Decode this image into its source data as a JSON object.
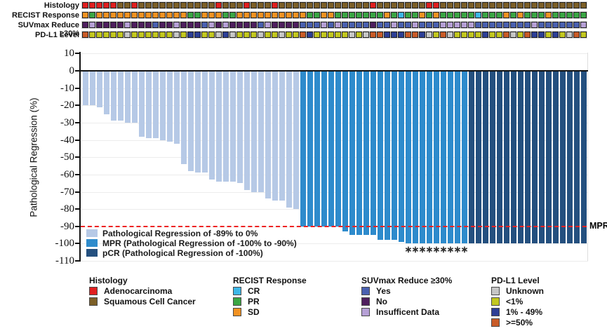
{
  "annotation_tracks": {
    "palette": {
      "histology": {
        "red": "#e01f1f",
        "brown": "#7c5f27"
      },
      "recist": {
        "orange": "#f29222",
        "green": "#3ba644",
        "cyan": "#3db7e8"
      },
      "suv": {
        "blue": "#4a60b0",
        "dkpurple": "#4f1f5e",
        "ltpurple": "#b6a0d6"
      },
      "pdl1": {
        "gray": "#c6c6c6",
        "yellow": "#c2c71f",
        "blue": "#2c3e95",
        "orange": "#c95b27"
      }
    },
    "rows": [
      {
        "label": "Histology",
        "palette_key": "histology",
        "cells": [
          "red",
          "red",
          "red",
          "red",
          "red",
          "brown",
          "brown",
          "red",
          "brown",
          "brown",
          "brown",
          "brown",
          "brown",
          "brown",
          "brown",
          "brown",
          "brown",
          "brown",
          "brown",
          "red",
          "brown",
          "brown",
          "brown",
          "red",
          "brown",
          "brown",
          "brown",
          "red",
          "brown",
          "brown",
          "brown",
          "brown",
          "brown",
          "brown",
          "brown",
          "brown",
          "brown",
          "brown",
          "brown",
          "brown",
          "brown",
          "red",
          "brown",
          "brown",
          "brown",
          "brown",
          "brown",
          "brown",
          "brown",
          "red",
          "red",
          "brown",
          "brown",
          "brown",
          "brown",
          "brown",
          "brown",
          "brown",
          "brown",
          "brown",
          "brown",
          "brown",
          "brown",
          "brown",
          "brown",
          "brown",
          "brown",
          "brown",
          "brown",
          "brown",
          "brown",
          "brown"
        ]
      },
      {
        "label": "RECIST Response",
        "palette_key": "recist",
        "cells": [
          "orange",
          "green",
          "orange",
          "orange",
          "orange",
          "orange",
          "orange",
          "orange",
          "orange",
          "orange",
          "orange",
          "orange",
          "orange",
          "orange",
          "orange",
          "green",
          "green",
          "orange",
          "orange",
          "orange",
          "green",
          "green",
          "orange",
          "orange",
          "orange",
          "orange",
          "orange",
          "orange",
          "orange",
          "orange",
          "orange",
          "orange",
          "green",
          "green",
          "orange",
          "orange",
          "green",
          "green",
          "green",
          "green",
          "green",
          "green",
          "green",
          "orange",
          "green",
          "cyan",
          "green",
          "green",
          "orange",
          "green",
          "orange",
          "green",
          "green",
          "green",
          "green",
          "green",
          "cyan",
          "green",
          "green",
          "green",
          "orange",
          "green",
          "orange",
          "green",
          "green",
          "green",
          "orange",
          "green",
          "green",
          "green",
          "green",
          "green"
        ]
      },
      {
        "label": "SUVmax Reduce ≥30%",
        "palette_key": "suv",
        "cells": [
          "dkpurple",
          "ltpurple",
          "dkpurple",
          "dkpurple",
          "dkpurple",
          "dkpurple",
          "ltpurple",
          "dkpurple",
          "dkpurple",
          "dkpurple",
          "blue",
          "dkpurple",
          "dkpurple",
          "ltpurple",
          "dkpurple",
          "dkpurple",
          "dkpurple",
          "blue",
          "ltpurple",
          "dkpurple",
          "ltpurple",
          "dkpurple",
          "dkpurple",
          "dkpurple",
          "dkpurple",
          "blue",
          "ltpurple",
          "dkpurple",
          "dkpurple",
          "dkpurple",
          "dkpurple",
          "blue",
          "blue",
          "blue",
          "ltpurple",
          "blue",
          "ltpurple",
          "blue",
          "blue",
          "blue",
          "blue",
          "dkpurple",
          "blue",
          "blue",
          "ltpurple",
          "blue",
          "blue",
          "ltpurple",
          "blue",
          "blue",
          "blue",
          "ltpurple",
          "ltpurple",
          "ltpurple",
          "ltpurple",
          "ltpurple",
          "blue",
          "blue",
          "blue",
          "blue",
          "blue",
          "blue",
          "blue",
          "blue",
          "ltpurple",
          "blue",
          "blue",
          "blue",
          "blue",
          "blue",
          "blue",
          "ltpurple"
        ]
      },
      {
        "label": "PD-L1 Level",
        "palette_key": "pdl1",
        "cells": [
          "orange",
          "yellow",
          "yellow",
          "yellow",
          "yellow",
          "yellow",
          "gray",
          "yellow",
          "yellow",
          "yellow",
          "yellow",
          "yellow",
          "yellow",
          "gray",
          "yellow",
          "blue",
          "blue",
          "yellow",
          "yellow",
          "gray",
          "blue",
          "gray",
          "yellow",
          "yellow",
          "yellow",
          "gray",
          "yellow",
          "yellow",
          "gray",
          "yellow",
          "yellow",
          "orange",
          "blue",
          "yellow",
          "yellow",
          "yellow",
          "yellow",
          "yellow",
          "gray",
          "yellow",
          "gray",
          "orange",
          "orange",
          "blue",
          "blue",
          "blue",
          "orange",
          "orange",
          "blue",
          "gray",
          "yellow",
          "orange",
          "gray",
          "yellow",
          "yellow",
          "yellow",
          "yellow",
          "blue",
          "yellow",
          "yellow",
          "orange",
          "gray",
          "yellow",
          "orange",
          "blue",
          "blue",
          "yellow",
          "blue",
          "yellow",
          "gray",
          "orange",
          "yellow"
        ]
      }
    ]
  },
  "chart_data": {
    "type": "bar",
    "title": "",
    "ylabel": "Pathological Regression (%)",
    "ylim": [
      -110,
      10
    ],
    "yticks": [
      10,
      0,
      -10,
      -20,
      -30,
      -40,
      -50,
      -60,
      -70,
      -80,
      -90,
      -100,
      -110
    ],
    "grid": true,
    "n_patients": 72,
    "values": [
      -20,
      -20,
      -21,
      -25,
      -29,
      -29,
      -30,
      -30,
      -38,
      -39,
      -39,
      -40,
      -41,
      -42,
      -54,
      -58,
      -59,
      -59,
      -63,
      -64,
      -64,
      -64,
      -65,
      -69,
      -70,
      -70,
      -74,
      -75,
      -75,
      -79,
      -80,
      -90,
      -90,
      -90,
      -90,
      -90,
      -90,
      -93,
      -95,
      -95,
      -95,
      -95,
      -98,
      -98,
      -98,
      -99,
      -100,
      -100,
      -100,
      -100,
      -100,
      -100,
      -100,
      -100,
      -100,
      -100,
      -100,
      -100,
      -100,
      -100,
      -100,
      -100,
      -100,
      -100,
      -100,
      -100,
      -100,
      -100,
      -100,
      -100,
      -100,
      -100
    ],
    "classes": [
      "reg",
      "reg",
      "reg",
      "reg",
      "reg",
      "reg",
      "reg",
      "reg",
      "reg",
      "reg",
      "reg",
      "reg",
      "reg",
      "reg",
      "reg",
      "reg",
      "reg",
      "reg",
      "reg",
      "reg",
      "reg",
      "reg",
      "reg",
      "reg",
      "reg",
      "reg",
      "reg",
      "reg",
      "reg",
      "reg",
      "reg",
      "mpr",
      "mpr",
      "mpr",
      "mpr",
      "mpr",
      "mpr",
      "mpr",
      "mpr",
      "mpr",
      "mpr",
      "mpr",
      "mpr",
      "mpr",
      "mpr",
      "mpr",
      "mpr",
      "mpr",
      "mpr",
      "mpr",
      "mpr",
      "mpr",
      "mpr",
      "mpr",
      "mpr",
      "pcr",
      "pcr",
      "pcr",
      "pcr",
      "pcr",
      "pcr",
      "pcr",
      "pcr",
      "pcr",
      "pcr",
      "pcr",
      "pcr",
      "pcr",
      "pcr",
      "pcr",
      "pcr",
      "pcr"
    ],
    "colors": {
      "reg": "#b6c9e6",
      "mpr": "#2e8bcc",
      "pcr": "#24507f"
    },
    "reference_line": {
      "value": -90,
      "style": "dashed",
      "color": "#ee2222",
      "label": "MPR"
    },
    "asterisk_columns": [
      47,
      48,
      49,
      50,
      51,
      52,
      53,
      54,
      55
    ],
    "asterisk_glyph": "∗",
    "legend_position": "bottom-left-inside",
    "legend": [
      {
        "class": "reg",
        "label": "Pathological Regression of -89% to 0%"
      },
      {
        "class": "mpr",
        "label": "MPR (Pathological Regression of -100% to -90%)"
      },
      {
        "class": "pcr",
        "label": "pCR (Pathological Regression of -100%)"
      }
    ]
  },
  "bottom_legend": {
    "groups": [
      {
        "title": "Histology",
        "items": [
          {
            "color": "#e01f1f",
            "label": "Adenocarcinoma"
          },
          {
            "color": "#7c5f27",
            "label": "Squamous Cell Cancer"
          }
        ]
      },
      {
        "title": "RECIST Response",
        "items": [
          {
            "color": "#3db7e8",
            "label": "CR"
          },
          {
            "color": "#3ba644",
            "label": "PR"
          },
          {
            "color": "#f29222",
            "label": "SD"
          }
        ]
      },
      {
        "title": "SUVmax Reduce ≥30%",
        "items": [
          {
            "color": "#4a60b0",
            "label": "Yes"
          },
          {
            "color": "#4f1f5e",
            "label": "No"
          },
          {
            "color": "#b6a0d6",
            "label": "Insufficent Data"
          }
        ]
      },
      {
        "title": "PD-L1 Level",
        "items": [
          {
            "color": "#c6c6c6",
            "label": "Unknown"
          },
          {
            "color": "#c2c71f",
            "label": "<1%"
          },
          {
            "color": "#2c3e95",
            "label": "1% - 49%"
          },
          {
            "color": "#c95b27",
            "label": ">=50%"
          }
        ]
      }
    ]
  }
}
